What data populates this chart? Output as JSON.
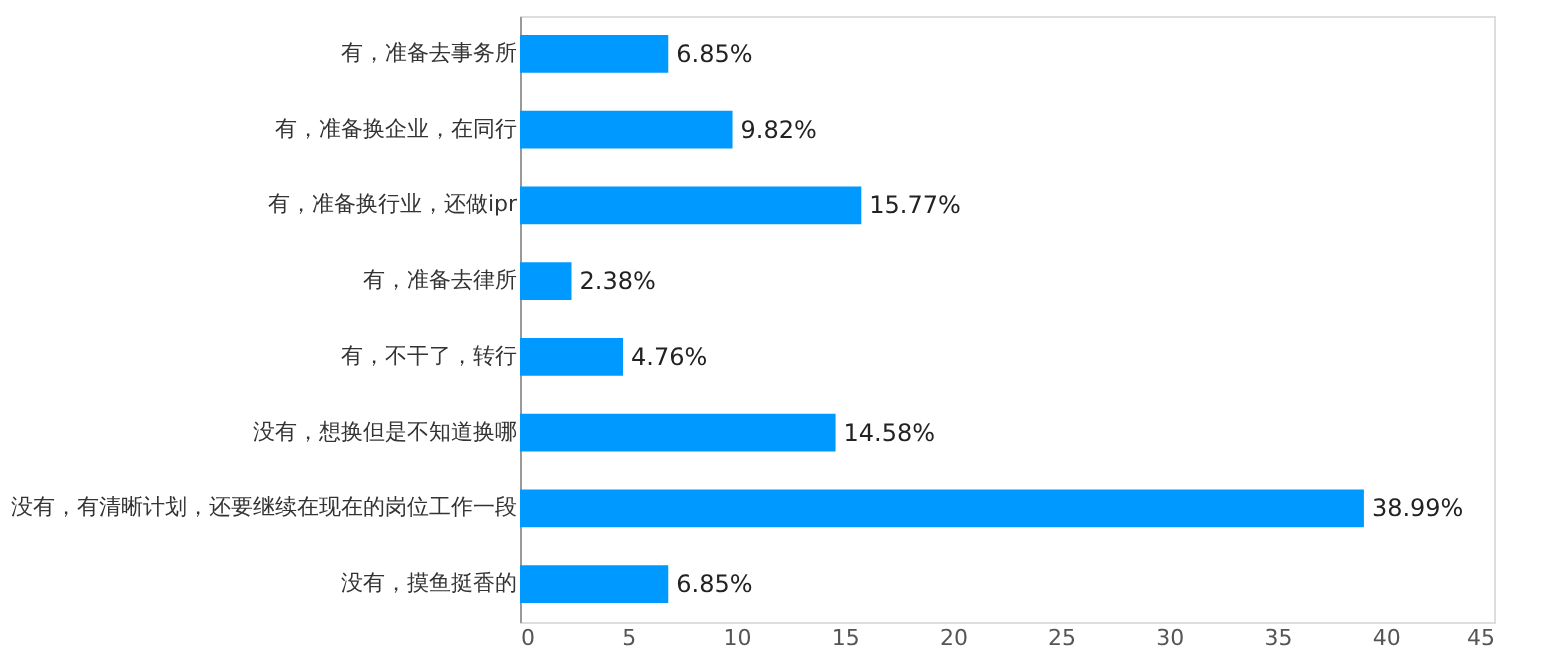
{
  "chart_data": {
    "type": "bar",
    "orientation": "horizontal",
    "categories": [
      "有，准备去事务所",
      "有，准备换企业，在同行",
      "有，准备换行业，还做ipr",
      "有，准备去律所",
      "有，不干了，转行",
      "没有，想换但是不知道换哪",
      "没有，有清晰计划，还要继续在现在的岗位工作一段",
      "没有，摸鱼挺香的"
    ],
    "values": [
      6.85,
      9.82,
      15.77,
      2.38,
      4.76,
      14.58,
      38.99,
      6.85
    ],
    "value_labels": [
      "6.85%",
      "9.82%",
      "15.77%",
      "2.38%",
      "4.76%",
      "14.58%",
      "38.99%",
      "6.85%"
    ],
    "color": "#0099ff",
    "xlim": [
      0,
      45
    ],
    "xticks": [
      0,
      5,
      10,
      15,
      20,
      25,
      30,
      35,
      40,
      45
    ],
    "grid": false
  }
}
